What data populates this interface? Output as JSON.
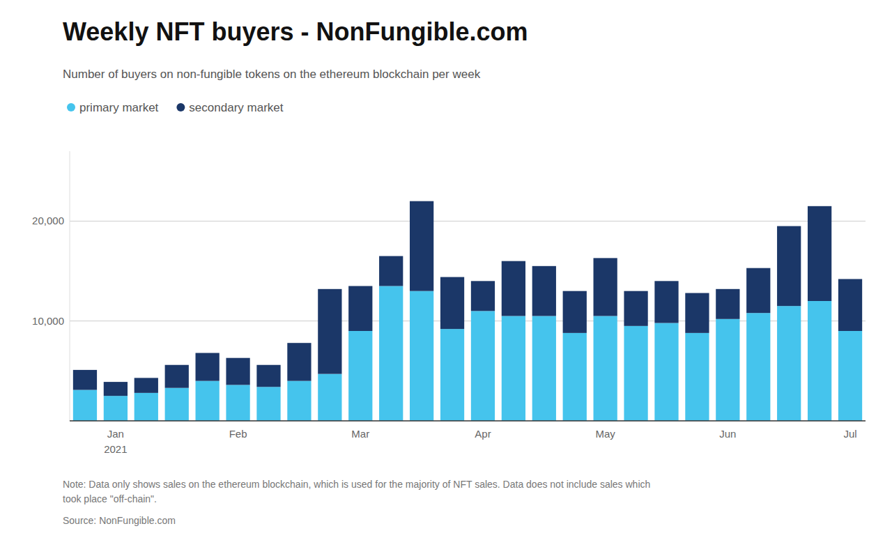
{
  "chart_data": {
    "type": "bar",
    "stacked": true,
    "title": "Weekly NFT buyers - NonFungible.com",
    "subtitle": "Number of buyers on non-fungible tokens on the ethereum blockchain per week",
    "note": "Note: Data only shows sales on the ethereum blockchain, which is used for the majority of NFT sales. Data does not include sales which\ntook place \"off-chain\".",
    "source": "Source: NonFungible.com",
    "annotations": [
      "2021"
    ],
    "categories": [
      null,
      "Jan",
      null,
      null,
      null,
      "Feb",
      null,
      null,
      null,
      "Mar",
      null,
      null,
      null,
      "Apr",
      null,
      null,
      null,
      "May",
      null,
      null,
      null,
      "Jun",
      null,
      null,
      null,
      "Jul"
    ],
    "series": [
      {
        "name": "primary market",
        "color": "#45c4ed",
        "values": [
          3100,
          2500,
          2800,
          3300,
          4000,
          3600,
          3400,
          4000,
          4700,
          9000,
          13500,
          13000,
          9200,
          11000,
          10500,
          10500,
          8800,
          10500,
          9500,
          9800,
          8800,
          10200,
          10800,
          11500,
          12000,
          9000
        ]
      },
      {
        "name": "secondary market",
        "color": "#1b3768",
        "values": [
          2000,
          1400,
          1500,
          2300,
          2800,
          2700,
          2200,
          3800,
          8500,
          4500,
          3000,
          9000,
          5200,
          3000,
          5500,
          5000,
          4200,
          5800,
          3500,
          4200,
          4000,
          3000,
          4500,
          8000,
          9500,
          5200
        ]
      }
    ],
    "ylim": [
      0,
      27000
    ],
    "yticks": [
      {
        "value": 10000,
        "label": "10,000"
      },
      {
        "value": 20000,
        "label": "20,000"
      }
    ],
    "grid": true,
    "legend": "top"
  }
}
